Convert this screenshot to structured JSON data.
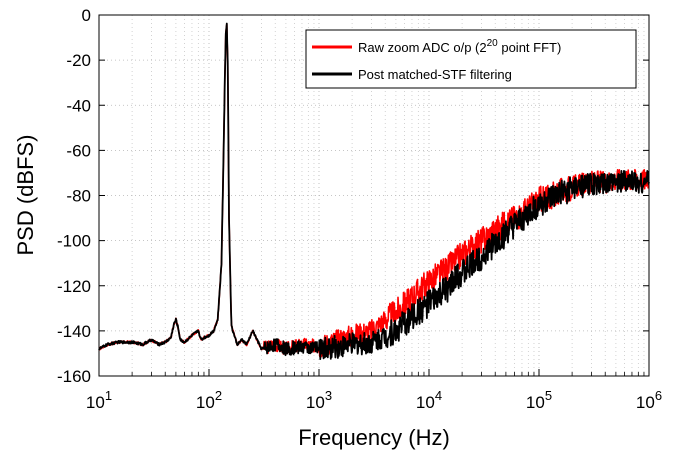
{
  "chart_data": {
    "type": "line",
    "xlabel": "Frequency (Hz)",
    "ylabel": "PSD (dBFS)",
    "x_scale": "log",
    "xlim": [
      10,
      1000000
    ],
    "ylim": [
      -160,
      0
    ],
    "grid": true,
    "legend_position": "top-right",
    "xticks": [
      {
        "value": 10,
        "base": "10",
        "exp": "1"
      },
      {
        "value": 100,
        "base": "10",
        "exp": "2"
      },
      {
        "value": 1000,
        "base": "10",
        "exp": "3"
      },
      {
        "value": 10000,
        "base": "10",
        "exp": "4"
      },
      {
        "value": 100000,
        "base": "10",
        "exp": "5"
      },
      {
        "value": 1000000,
        "base": "10",
        "exp": "6"
      }
    ],
    "yticks": [
      0,
      -20,
      -40,
      -60,
      -80,
      -100,
      -120,
      -140,
      -160
    ],
    "series": [
      {
        "name_prefix": "Raw zoom ADC o/p (2",
        "name_sup": "20",
        "name_suffix": " point FFT)",
        "color": "#ff0000",
        "x": [
          10,
          12,
          15,
          20,
          25,
          30,
          35,
          40,
          45,
          48,
          50,
          52,
          55,
          60,
          70,
          80,
          85,
          90,
          100,
          110,
          120,
          130,
          138,
          142,
          145,
          148,
          152,
          160,
          170,
          180,
          200,
          220,
          250,
          280,
          300,
          350,
          400,
          500,
          700,
          1000,
          1500,
          2000,
          3000,
          4000,
          5000,
          7000,
          10000,
          15000,
          20000,
          30000,
          50000,
          70000,
          100000,
          150000,
          200000,
          300000,
          400000,
          500000,
          700000,
          1000000
        ],
        "y": [
          -148,
          -146,
          -145,
          -145,
          -146,
          -144,
          -146,
          -145,
          -143,
          -137,
          -135,
          -138,
          -144,
          -145,
          -142,
          -140,
          -144,
          -143,
          -142,
          -140,
          -135,
          -110,
          -40,
          -8,
          -4,
          -20,
          -90,
          -138,
          -142,
          -146,
          -144,
          -146,
          -140,
          -145,
          -148,
          -147,
          -146,
          -148,
          -146,
          -147,
          -144,
          -142,
          -140,
          -135,
          -132,
          -125,
          -118,
          -112,
          -106,
          -100,
          -92,
          -88,
          -82,
          -79,
          -76,
          -74,
          -74,
          -73,
          -73,
          -73
        ]
      },
      {
        "name": "Post matched-STF filtering",
        "color": "#000000",
        "x": [
          10,
          12,
          15,
          20,
          25,
          30,
          35,
          40,
          45,
          48,
          50,
          52,
          55,
          60,
          70,
          80,
          85,
          90,
          100,
          110,
          120,
          130,
          138,
          142,
          145,
          148,
          152,
          160,
          170,
          180,
          200,
          220,
          250,
          280,
          300,
          350,
          400,
          500,
          700,
          1000,
          1500,
          2000,
          3000,
          4000,
          5000,
          7000,
          10000,
          15000,
          20000,
          30000,
          50000,
          70000,
          100000,
          150000,
          200000,
          300000,
          400000,
          500000,
          700000,
          1000000
        ],
        "y": [
          -148,
          -146,
          -145,
          -145,
          -146,
          -144,
          -146,
          -145,
          -143,
          -137,
          -135,
          -138,
          -144,
          -145,
          -142,
          -140,
          -144,
          -143,
          -142,
          -140,
          -135,
          -110,
          -40,
          -8,
          -4,
          -20,
          -90,
          -138,
          -142,
          -146,
          -144,
          -146,
          -140,
          -145,
          -148,
          -147,
          -146,
          -148,
          -147,
          -148,
          -147,
          -146,
          -145,
          -142,
          -140,
          -134,
          -128,
          -121,
          -114,
          -107,
          -97,
          -91,
          -84,
          -80,
          -77,
          -75,
          -75,
          -74,
          -74,
          -74
        ]
      }
    ]
  }
}
